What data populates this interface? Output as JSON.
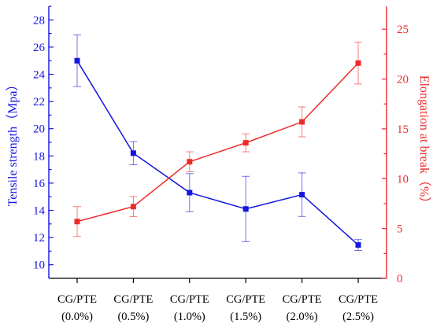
{
  "chart_data": {
    "type": "line",
    "categories": [
      [
        "CG/PTE",
        "(0.0%)"
      ],
      [
        "CG/PTE",
        "(0.5%)"
      ],
      [
        "CG/PTE",
        "(1.0%)"
      ],
      [
        "CG/PTE",
        "(1.5%)"
      ],
      [
        "CG/PTE",
        "(2.0%)"
      ],
      [
        "CG/PTE",
        "(2.5%)"
      ]
    ],
    "y_left": {
      "label": "Tensile strength（Mpa）",
      "range": [
        9,
        29
      ],
      "ticks": [
        10,
        12,
        14,
        16,
        18,
        20,
        22,
        24,
        26,
        28
      ],
      "color": "#1515e0"
    },
    "y_right": {
      "label": "Elongation at break（%）",
      "range": [
        0,
        27.3
      ],
      "ticks": [
        0,
        5,
        10,
        15,
        20,
        25
      ],
      "color": "#ee2b2b"
    },
    "series": [
      {
        "axis": "left",
        "color": "#1515e0",
        "values": [
          25.0,
          18.2,
          15.3,
          14.1,
          15.15,
          11.45
        ],
        "errors": [
          1.9,
          0.85,
          1.4,
          2.4,
          1.6,
          0.4
        ]
      },
      {
        "axis": "right",
        "color": "#ee2b2b",
        "values": [
          5.7,
          7.2,
          11.7,
          13.6,
          15.7,
          21.6
        ],
        "errors": [
          1.5,
          1.0,
          1.0,
          0.9,
          1.5,
          2.1
        ]
      }
    ],
    "grid": false,
    "legend": "none"
  }
}
